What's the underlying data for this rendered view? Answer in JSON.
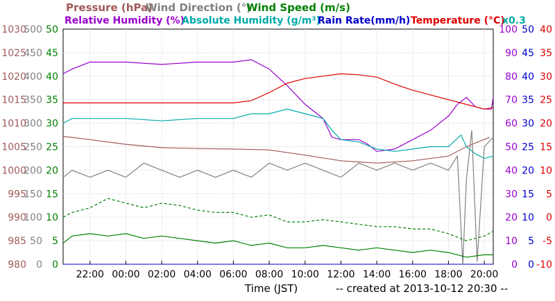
{
  "chart_data": {
    "type": "line",
    "legend_row1": [
      {
        "text": "Pressure (hPa)",
        "color": "#a05a5a"
      },
      {
        "text": "Wind Direction (°)",
        "color": "#808080"
      },
      {
        "text": "Wind Speed (m/s)",
        "color": "#008000"
      }
    ],
    "legend_row2": [
      {
        "text": "Relative Humidity (%)",
        "color": "#9900cc"
      },
      {
        "text": "Absolute Humidity (g/m³)",
        "color": "#00aaaa"
      },
      {
        "text": "Rain Rate(mm/h)",
        "color": "#0000cc"
      },
      {
        "text": "Temperature (°C)",
        "color": "#dd0000"
      },
      {
        "text": "x0.3",
        "color": "#00aaaa"
      }
    ],
    "axes": {
      "pressure": {
        "color": "#a05a5a",
        "ticks": [
          "980",
          "985",
          "990",
          "995",
          "1000",
          "1005",
          "1010",
          "1015",
          "1020",
          "1025",
          "1030"
        ],
        "range": [
          980,
          1030
        ]
      },
      "wind_direction": {
        "color": "#808080",
        "ticks": [
          "0",
          "50",
          "100",
          "150",
          "200",
          "250",
          "300",
          "350",
          "400",
          "450",
          "500"
        ],
        "range": [
          0,
          500
        ]
      },
      "wind_speed": {
        "color": "#008000",
        "ticks": [
          "0",
          "5",
          "10",
          "15",
          "20",
          "25",
          "30",
          "35",
          "40",
          "45",
          "50"
        ],
        "range": [
          0,
          50
        ]
      },
      "humidity": {
        "color": "#9900cc",
        "ticks": [
          "0",
          "10",
          "20",
          "30",
          "40",
          "50",
          "60",
          "70",
          "80",
          "90",
          "100"
        ],
        "range": [
          0,
          100
        ]
      },
      "rain_rate": {
        "color": "#0000cc",
        "ticks": [
          "0",
          "5",
          "10",
          "15",
          "20",
          "25",
          "30",
          "35",
          "40",
          "45",
          "50"
        ],
        "range": [
          0,
          50
        ]
      },
      "temperature": {
        "color": "#dd0000",
        "ticks": [
          "-10",
          "-5",
          "0",
          "5",
          "10",
          "15",
          "20",
          "25",
          "30",
          "35",
          "40"
        ],
        "range": [
          -10,
          40
        ]
      }
    },
    "x_ticks": [
      "22:00",
      "00:00",
      "02:00",
      "04:00",
      "06:00",
      "08:00",
      "10:00",
      "12:00",
      "14:00",
      "16:00",
      "18:00",
      "20:00"
    ],
    "x_range_hours": [
      20.5,
      44.5
    ],
    "xlabel": "Time (JST)",
    "footer": "-- created at 2013-10-12 20:30 --",
    "series": [
      {
        "name": "Pressure (hPa)",
        "axis": "pressure",
        "color": "#a05a5a",
        "points": [
          [
            20.5,
            1007.2
          ],
          [
            22,
            1006.5
          ],
          [
            24,
            1005.5
          ],
          [
            26,
            1004.8
          ],
          [
            28,
            1004.6
          ],
          [
            30,
            1004.5
          ],
          [
            32,
            1004.3
          ],
          [
            34,
            1003.2
          ],
          [
            36,
            1002
          ],
          [
            38,
            1001.5
          ],
          [
            40,
            1002
          ],
          [
            42,
            1003
          ],
          [
            43,
            1005
          ],
          [
            44.3,
            1007
          ]
        ]
      },
      {
        "name": "Relative Humidity (%)",
        "axis": "humidity",
        "color": "#9900cc",
        "points": [
          [
            20.5,
            81
          ],
          [
            21,
            83
          ],
          [
            22,
            86
          ],
          [
            24,
            86
          ],
          [
            26,
            85
          ],
          [
            28,
            86
          ],
          [
            30,
            86
          ],
          [
            31,
            87
          ],
          [
            32,
            83
          ],
          [
            33,
            76
          ],
          [
            34,
            68
          ],
          [
            35,
            62
          ],
          [
            35.5,
            54
          ],
          [
            36,
            53
          ],
          [
            37,
            53
          ],
          [
            37.5,
            51
          ],
          [
            38,
            48
          ],
          [
            39,
            49
          ],
          [
            40,
            53
          ],
          [
            41,
            57
          ],
          [
            42,
            63
          ],
          [
            42.5,
            68
          ],
          [
            43,
            71
          ],
          [
            43.5,
            67
          ],
          [
            44,
            66
          ],
          [
            44.4,
            66
          ],
          [
            44.5,
            71
          ]
        ]
      },
      {
        "name": "Absolute Humidity (g/m³)",
        "axis": "humidity",
        "color": "#00aaaa",
        "points": [
          [
            20.5,
            60
          ],
          [
            21,
            62
          ],
          [
            24,
            62
          ],
          [
            26,
            61
          ],
          [
            28,
            62
          ],
          [
            30,
            62
          ],
          [
            31,
            64
          ],
          [
            32,
            64
          ],
          [
            33,
            66
          ],
          [
            34,
            64
          ],
          [
            35,
            62
          ],
          [
            35.5,
            57
          ],
          [
            36,
            53
          ],
          [
            37,
            52
          ],
          [
            38,
            49
          ],
          [
            39,
            48
          ],
          [
            40,
            49
          ],
          [
            41,
            50
          ],
          [
            42,
            50
          ],
          [
            42.7,
            55
          ],
          [
            43,
            50
          ],
          [
            43.5,
            47
          ],
          [
            44,
            45
          ],
          [
            44.5,
            46
          ]
        ]
      },
      {
        "name": "Temperature (°C)",
        "axis": "temperature",
        "color": "#dd0000",
        "points": [
          [
            20.5,
            24.3
          ],
          [
            22,
            24.3
          ],
          [
            24,
            24.3
          ],
          [
            26,
            24.3
          ],
          [
            28,
            24.3
          ],
          [
            30,
            24.3
          ],
          [
            31,
            24.8
          ],
          [
            32,
            26.5
          ],
          [
            33,
            28.5
          ],
          [
            34,
            29.5
          ],
          [
            35,
            30
          ],
          [
            36,
            30.5
          ],
          [
            37,
            30.3
          ],
          [
            38,
            29.8
          ],
          [
            39,
            28.3
          ],
          [
            40,
            27
          ],
          [
            41,
            26
          ],
          [
            42,
            25
          ],
          [
            43,
            24
          ],
          [
            44,
            23
          ],
          [
            44.5,
            23.3
          ]
        ]
      },
      {
        "name": "Wind Direction (°)",
        "axis": "wind_direction",
        "color": "#808080",
        "points": [
          [
            20.5,
            185
          ],
          [
            21,
            200
          ],
          [
            22,
            185
          ],
          [
            23,
            200
          ],
          [
            24,
            185
          ],
          [
            25,
            215
          ],
          [
            26,
            200
          ],
          [
            27,
            185
          ],
          [
            28,
            200
          ],
          [
            29,
            185
          ],
          [
            30,
            200
          ],
          [
            31,
            185
          ],
          [
            32,
            215
          ],
          [
            33,
            200
          ],
          [
            34,
            215
          ],
          [
            35,
            200
          ],
          [
            36,
            185
          ],
          [
            37,
            215
          ],
          [
            38,
            200
          ],
          [
            39,
            215
          ],
          [
            40,
            200
          ],
          [
            41,
            215
          ],
          [
            42,
            200
          ],
          [
            42.5,
            230
          ],
          [
            42.8,
            0
          ],
          [
            43,
            180
          ],
          [
            43.3,
            285
          ],
          [
            43.6,
            5
          ],
          [
            44,
            250
          ],
          [
            44.5,
            270
          ]
        ]
      },
      {
        "name": "Wind Speed (m/s)",
        "axis": "wind_speed",
        "color": "#008000",
        "points": [
          [
            20.5,
            4.5
          ],
          [
            21,
            6
          ],
          [
            22,
            6.5
          ],
          [
            23,
            6
          ],
          [
            24,
            6.5
          ],
          [
            25,
            5.5
          ],
          [
            26,
            6
          ],
          [
            27,
            5.5
          ],
          [
            28,
            5
          ],
          [
            29,
            4.5
          ],
          [
            30,
            5
          ],
          [
            31,
            4
          ],
          [
            32,
            4.5
          ],
          [
            33,
            3.5
          ],
          [
            34,
            3.5
          ],
          [
            35,
            4
          ],
          [
            36,
            3.5
          ],
          [
            37,
            3
          ],
          [
            38,
            3.5
          ],
          [
            39,
            3
          ],
          [
            40,
            2.5
          ],
          [
            41,
            3
          ],
          [
            42,
            2.5
          ],
          [
            43,
            1.5
          ],
          [
            44,
            2
          ],
          [
            44.5,
            2
          ]
        ]
      },
      {
        "name": "Wind Speed gust (m/s)",
        "axis": "wind_speed",
        "color": "#008000",
        "dashed": true,
        "points": [
          [
            20.5,
            10
          ],
          [
            21,
            11
          ],
          [
            22,
            12
          ],
          [
            23,
            14
          ],
          [
            24,
            13
          ],
          [
            25,
            12
          ],
          [
            26,
            13
          ],
          [
            27,
            12.5
          ],
          [
            28,
            11.5
          ],
          [
            29,
            11
          ],
          [
            30,
            11
          ],
          [
            31,
            10
          ],
          [
            32,
            10.5
          ],
          [
            33,
            9
          ],
          [
            34,
            9
          ],
          [
            35,
            9.5
          ],
          [
            36,
            9
          ],
          [
            37,
            8.5
          ],
          [
            38,
            8
          ],
          [
            39,
            8
          ],
          [
            40,
            7.5
          ],
          [
            41,
            7.5
          ],
          [
            42,
            6.5
          ],
          [
            43,
            5
          ],
          [
            44,
            6
          ],
          [
            44.5,
            7
          ]
        ]
      }
    ]
  }
}
